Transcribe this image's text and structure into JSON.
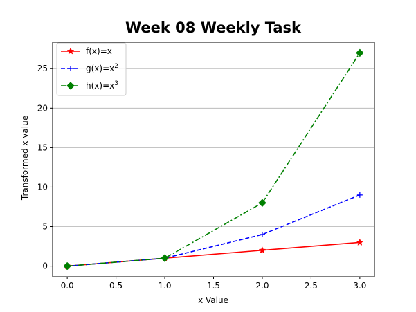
{
  "chart_data": {
    "type": "line",
    "title": "Week 08 Weekly Task",
    "xlabel": "x Value",
    "ylabel": "Transformed x value",
    "xlim": [
      -0.15,
      3.15
    ],
    "ylim": [
      -1.35,
      28.35
    ],
    "x_ticks": [
      0.0,
      0.5,
      1.0,
      1.5,
      2.0,
      2.5,
      3.0
    ],
    "x_tick_labels": [
      "0.0",
      "0.5",
      "1.0",
      "1.5",
      "2.0",
      "2.5",
      "3.0"
    ],
    "y_ticks": [
      0,
      5,
      10,
      15,
      20,
      25
    ],
    "y_tick_labels": [
      "0",
      "5",
      "10",
      "15",
      "20",
      "25"
    ],
    "grid": "horizontal",
    "legend_position": "upper-left",
    "x": [
      0,
      1,
      2,
      3
    ],
    "series": [
      {
        "name": "f(x)=x",
        "name_base": "f(x)=x",
        "name_sup": "",
        "values": [
          0,
          1,
          2,
          3
        ],
        "color": "#ff0000",
        "line_style": "solid",
        "marker": "star"
      },
      {
        "name": "g(x)=x2",
        "name_base": "g(x)=x",
        "name_sup": "2",
        "values": [
          0,
          1,
          4,
          9
        ],
        "color": "#0000ff",
        "line_style": "dashed",
        "marker": "plus"
      },
      {
        "name": "h(x)=x3",
        "name_base": "h(x)=x",
        "name_sup": "3",
        "values": [
          0,
          1,
          8,
          27
        ],
        "color": "#008000",
        "line_style": "dash-dot",
        "marker": "diamond"
      }
    ]
  }
}
